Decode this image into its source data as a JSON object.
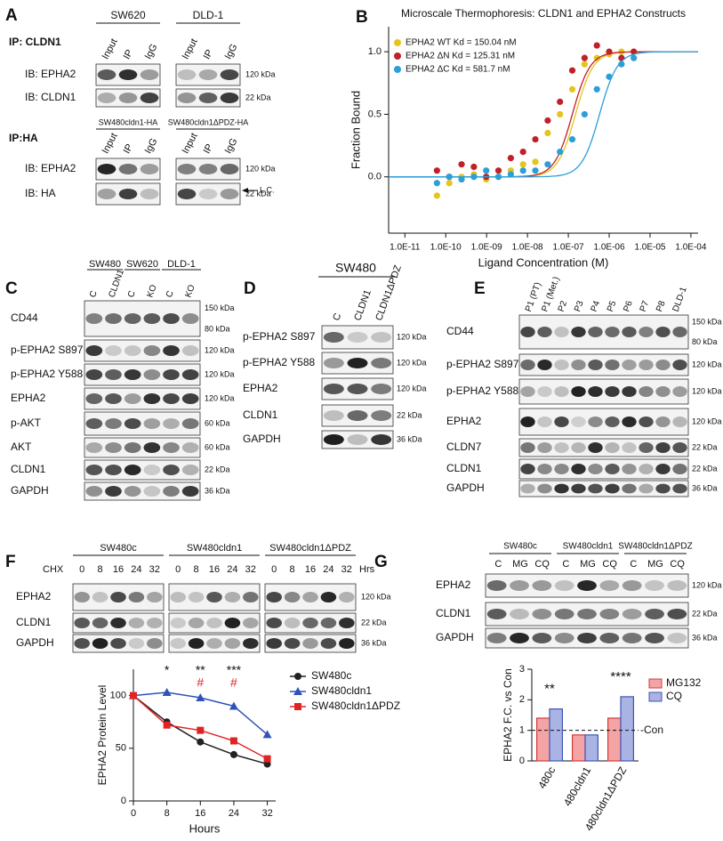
{
  "panel_a": {
    "label": "A",
    "ip1": "IP: CLDN1",
    "lines1": [
      "SW620",
      "DLD-1"
    ],
    "lanes": [
      "Input",
      "IP",
      "IgG"
    ],
    "rows1": [
      {
        "name": "IB: EPHA2",
        "kda": [
          "120 kDa"
        ]
      },
      {
        "name": "IB: CLDN1",
        "kda": [
          "22 kDa"
        ]
      }
    ],
    "ip2": "IP:HA",
    "lines2": [
      "SW480cldn1-HA",
      "SW480cldn1ΔPDZ-HA"
    ],
    "rows2": [
      {
        "name": "IB: EPHA2",
        "kda": [
          "120 kDa"
        ]
      },
      {
        "name": "IB: HA",
        "kda": [
          "22 kDa"
        ]
      }
    ],
    "lc": "L.C."
  },
  "panel_c": {
    "label": "C",
    "lines": [
      "SW480",
      "SW620",
      "DLD-1"
    ],
    "lanes": [
      "C",
      "CLDN1",
      "C",
      "KO",
      "C",
      "KO"
    ],
    "rows": [
      {
        "name": "CD44",
        "kda": [
          "150 kDa",
          "80 kDa"
        ]
      },
      {
        "name": "p-EPHA2 S897",
        "kda": [
          "120 kDa"
        ]
      },
      {
        "name": "p-EPHA2 Y588",
        "kda": [
          "120 kDa"
        ]
      },
      {
        "name": "EPHA2",
        "kda": [
          "120 kDa"
        ]
      },
      {
        "name": "p-AKT",
        "kda": [
          "60 kDa"
        ]
      },
      {
        "name": "AKT",
        "kda": [
          "60 kDa"
        ]
      },
      {
        "name": "CLDN1",
        "kda": [
          "22 kDa"
        ]
      },
      {
        "name": "GAPDH",
        "kda": [
          "36 kDa"
        ]
      }
    ]
  },
  "panel_d": {
    "label": "D",
    "line": "SW480",
    "lanes": [
      "C",
      "CLDN1",
      "CLDN1ΔPDZ"
    ],
    "rows": [
      {
        "name": "p-EPHA2 S897",
        "kda": [
          "120 kDa"
        ]
      },
      {
        "name": "p-EPHA2 Y588",
        "kda": [
          "120 kDa"
        ]
      },
      {
        "name": "EPHA2",
        "kda": [
          "120 kDa"
        ]
      },
      {
        "name": "CLDN1",
        "kda": [
          "22 kDa"
        ]
      },
      {
        "name": "GAPDH",
        "kda": [
          "36 kDa"
        ]
      }
    ]
  },
  "panel_e": {
    "label": "E",
    "lanes": [
      "P1 (PT)",
      "P1 (Met.)",
      "P2",
      "P3",
      "P4",
      "P5",
      "P6",
      "P7",
      "P8",
      "DLD-1"
    ],
    "rows": [
      {
        "name": "CD44",
        "kda": [
          "150 kDa",
          "80 kDa"
        ]
      },
      {
        "name": "p-EPHA2 S897",
        "kda": [
          "120 kDa"
        ]
      },
      {
        "name": "p-EPHA2 Y588",
        "kda": [
          "120 kDa"
        ]
      },
      {
        "name": "EPHA2",
        "kda": [
          "120 kDa"
        ]
      },
      {
        "name": "CLDN7",
        "kda": [
          "22 kDa"
        ]
      },
      {
        "name": "CLDN1",
        "kda": [
          "22 kDa"
        ]
      },
      {
        "name": "GAPDH",
        "kda": [
          "36 kDa"
        ]
      }
    ]
  },
  "panel_f": {
    "label": "F",
    "lines": [
      "SW480c",
      "SW480cldn1",
      "SW480cldn1ΔPDZ"
    ],
    "chx": "CHX",
    "times": [
      "0",
      "8",
      "16",
      "24",
      "32"
    ],
    "unit": "Hrs",
    "rows": [
      {
        "name": "EPHA2",
        "kda": [
          "120 kDa"
        ]
      },
      {
        "name": "CLDN1",
        "kda": [
          "22 kDa"
        ]
      },
      {
        "name": "GAPDH",
        "kda": [
          "36 kDa"
        ]
      }
    ]
  },
  "panel_g": {
    "label": "G",
    "lines": [
      "SW480c",
      "SW480cldn1",
      "SW480cldn1ΔPDZ"
    ],
    "lanes": [
      "C",
      "MG",
      "CQ"
    ],
    "rows": [
      {
        "name": "EPHA2",
        "kda": [
          "120 kDa"
        ]
      },
      {
        "name": "CLDN1",
        "kda": [
          "22 kDa"
        ]
      },
      {
        "name": "GAPDH",
        "kda": [
          "36 kDa"
        ]
      }
    ]
  },
  "chart_data": [
    {
      "type": "scatter",
      "panel": "B",
      "title": "Microscale Thermophoresis: CLDN1 and EPHA2 Constructs",
      "x_label": "Ligand Concentration (M)",
      "y_label": "Fraction Bound",
      "log_x": true,
      "x": [
        6.1e-11,
        1.22e-10,
        2.44e-10,
        4.88e-10,
        9.77e-10,
        1.95e-09,
        3.91e-09,
        7.81e-09,
        1.56e-08,
        3.13e-08,
        6.25e-08,
        1.25e-07,
        2.5e-07,
        5e-07,
        1e-06,
        2e-06,
        4e-06
      ],
      "series": [
        {
          "name": "EPHA2 WT Kd = 150.04 nM",
          "color": "#e3c51c",
          "kd_nM": 150.04,
          "values": [
            -0.15,
            -0.05,
            0.0,
            0.02,
            -0.02,
            0.0,
            0.05,
            0.1,
            0.12,
            0.35,
            0.5,
            0.7,
            0.9,
            0.95,
            0.98,
            1.0,
            1.0
          ]
        },
        {
          "name": "EPHA2 ΔN Kd = 125.31 nM",
          "color": "#c0202a",
          "kd_nM": 125.31,
          "values": [
            0.05,
            0.0,
            0.1,
            0.08,
            0.0,
            0.05,
            0.15,
            0.2,
            0.3,
            0.45,
            0.6,
            0.85,
            0.95,
            1.05,
            1.0,
            0.95,
            1.0
          ]
        },
        {
          "name": "EPHA2 ΔC Kd = 581.7 nM",
          "color": "#2b9fd8",
          "kd_nM": 581.7,
          "values": [
            -0.05,
            0.0,
            -0.02,
            0.0,
            0.05,
            0.0,
            0.02,
            0.05,
            0.05,
            0.1,
            0.2,
            0.3,
            0.5,
            0.7,
            0.8,
            0.9,
            0.95
          ]
        }
      ],
      "xlim": [
        4e-12,
        0.00015
      ],
      "xticks": [
        {
          "value": 1e-11,
          "label": "1.0E-11"
        },
        {
          "value": 1e-10,
          "label": "1.0E-10"
        },
        {
          "value": 1e-09,
          "label": "1.0E-09"
        },
        {
          "value": 1e-08,
          "label": "1.0E-08"
        },
        {
          "value": 1e-07,
          "label": "1.0E-07"
        },
        {
          "value": 1e-06,
          "label": "1.0E-06"
        },
        {
          "value": 1e-05,
          "label": "1.0E-05"
        },
        {
          "value": 0.0001,
          "label": "1.0E-04"
        }
      ],
      "ylim": [
        -0.45,
        1.2
      ],
      "yticks": [
        {
          "value": 0,
          "label": "0.0"
        },
        0.5,
        {
          "value": 1,
          "label": "1.0"
        }
      ]
    },
    {
      "type": "line",
      "x_label": "Hours",
      "y_label": "EPHA2 Protein Level",
      "x": [
        0,
        8,
        16,
        24,
        32
      ],
      "series": [
        {
          "name": "SW480c",
          "color": "#222222",
          "marker": "circle",
          "values": [
            100,
            75,
            56,
            44,
            35
          ]
        },
        {
          "name": "SW480cldn1",
          "color": "#2f54b8",
          "marker": "triangle",
          "values": [
            100,
            103,
            98,
            90,
            63
          ]
        },
        {
          "name": "SW480cldn1ΔPDZ",
          "color": "#e02424",
          "marker": "square",
          "values": [
            100,
            72,
            67,
            57,
            40
          ]
        }
      ],
      "annotations": [
        {
          "x": 8,
          "text": "*",
          "color": "#111111"
        },
        {
          "x": 16,
          "text": "**",
          "color": "#111111"
        },
        {
          "x": 24,
          "text": "***",
          "color": "#111111"
        },
        {
          "x": 16,
          "text": "#",
          "color": "#e02424"
        },
        {
          "x": 24,
          "text": "#",
          "color": "#e02424"
        }
      ],
      "xlim": [
        0,
        34
      ],
      "xticks": [
        0,
        8,
        16,
        24,
        32
      ],
      "ylim": [
        0,
        125
      ],
      "yticks": [
        0,
        50,
        100
      ]
    },
    {
      "type": "bar",
      "y_label": "EPHA2 F.C. vs Con",
      "categories": [
        "480c",
        "480cldn1",
        "480cldn1ΔPDZ"
      ],
      "series": [
        {
          "name": "MG132",
          "color": "#f4a4a4",
          "edgecolor": "#d23a3a",
          "values": [
            1.4,
            0.85,
            1.4
          ]
        },
        {
          "name": "CQ",
          "color": "#aab4e4",
          "edgecolor": "#3f55b5",
          "values": [
            1.7,
            0.85,
            2.1
          ]
        }
      ],
      "annotations": [
        {
          "category": "480c",
          "text": "**"
        },
        {
          "category": "480cldn1ΔPDZ",
          "text": "****"
        }
      ],
      "reference": {
        "value": 1,
        "label": "-Con"
      },
      "ylim": [
        0,
        3
      ],
      "yticks": [
        0,
        1,
        2,
        3
      ]
    }
  ]
}
